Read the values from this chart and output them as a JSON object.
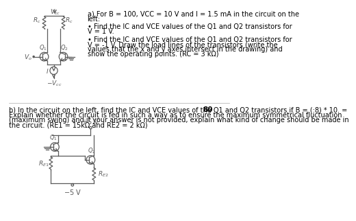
{
  "bg_color": "#ffffff",
  "text_color": "#000000",
  "lc": "#5a5a5a",
  "font_size": 7.0,
  "title_a_line1": "a) For B = 100, VCC = 10 V and I = 1.5 mA in the circuit on the",
  "title_a_line2": "left:",
  "bullet1_line1": "• Find the IC and VCE values of the Q1 and Q2 transistors for",
  "bullet1_line2": "V = 1 V.",
  "bullet2_line1": "• Find the IC and VCE values of the Q1 and Q2 transistors for",
  "bullet2_line2": "V = -1 V. Draw the load lines of the transistors (write the",
  "bullet2_line3": "values that the x and y axes intersect in the drawing) and",
  "bullet2_line4": "show the operating points. (RC = 3 kΩ)",
  "textb_line1a": "b) In the circuit on the left, find the IC and VCE values of the Q1 and Q2 transistors if B = (:8) * 10. =",
  "textb_bold": "80",
  "textb_line2": "Explain whether the circuit is fed in such a way as to ensure the maximum symmetrical fluctuation",
  "textb_line3": "(maximum swing) and if your answer is not provided, explain what kind of change should be made in",
  "textb_line4": "the circuit. (RE1 = 15kΩ and RE2 = 2 kΩ)"
}
